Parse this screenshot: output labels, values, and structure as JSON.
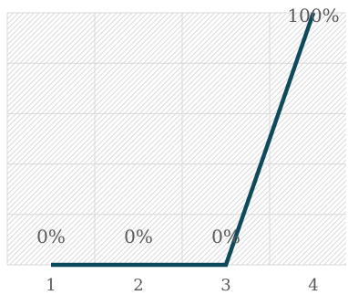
{
  "chart_data": {
    "type": "line",
    "x": [
      1,
      2,
      3,
      4
    ],
    "y": [
      0,
      0,
      0,
      100
    ],
    "data_labels": [
      "0%",
      "0%",
      "0%",
      "100%"
    ],
    "x_tick_labels": [
      "1",
      "2",
      "3",
      "4"
    ],
    "ylim": [
      0,
      100
    ],
    "y_tick_values": [
      0,
      20,
      40,
      60,
      80,
      100
    ],
    "grid": true,
    "title": "",
    "xlabel": "",
    "ylabel": "",
    "legend": "none",
    "colors": {
      "line": "#0d4a5c",
      "gridline": "#d9d9d9",
      "hatch": "#d0d0d0",
      "text": "#595959"
    }
  }
}
